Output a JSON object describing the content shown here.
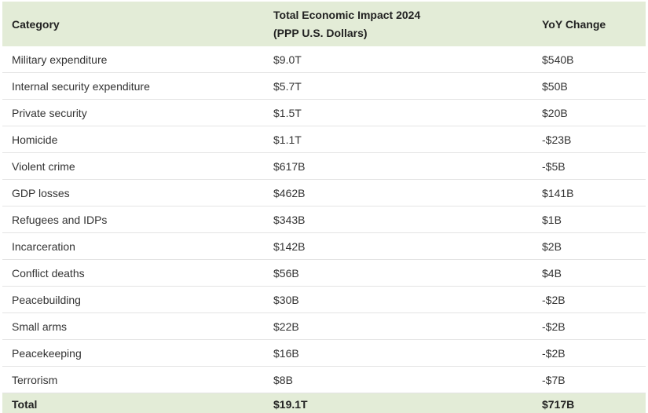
{
  "table": {
    "columns": {
      "category": "Category",
      "impact_line1": "Total Economic Impact 2024",
      "impact_line2": "(PPP U.S. Dollars)",
      "yoy": "YoY Change"
    },
    "rows": [
      {
        "category": "Military expenditure",
        "impact": "$9.0T",
        "yoy": "$540B"
      },
      {
        "category": "Internal security expenditure",
        "impact": "$5.7T",
        "yoy": "$50B"
      },
      {
        "category": "Private security",
        "impact": "$1.5T",
        "yoy": "$20B"
      },
      {
        "category": "Homicide",
        "impact": "$1.1T",
        "yoy": "-$23B"
      },
      {
        "category": "Violent crime",
        "impact": "$617B",
        "yoy": "-$5B"
      },
      {
        "category": "GDP losses",
        "impact": "$462B",
        "yoy": "$141B"
      },
      {
        "category": "Refugees and IDPs",
        "impact": "$343B",
        "yoy": "$1B"
      },
      {
        "category": "Incarceration",
        "impact": "$142B",
        "yoy": "$2B"
      },
      {
        "category": "Conflict deaths",
        "impact": "$56B",
        "yoy": "$4B"
      },
      {
        "category": "Peacebuilding",
        "impact": "$30B",
        "yoy": "-$2B"
      },
      {
        "category": "Small arms",
        "impact": "$22B",
        "yoy": "-$2B"
      },
      {
        "category": "Peacekeeping",
        "impact": "$16B",
        "yoy": "-$2B"
      },
      {
        "category": "Terrorism",
        "impact": "$8B",
        "yoy": "-$7B"
      }
    ],
    "total": {
      "category": "Total",
      "impact": "$19.1T",
      "yoy": "$717B"
    }
  },
  "colors": {
    "header_bg": "#e3ecd7",
    "total_row_bg": "#e3ecd7",
    "row_separator": "#e4e4e4",
    "header_text": "#222222",
    "body_text": "#333333",
    "row_bg": "#ffffff"
  },
  "chart_data": {
    "type": "table",
    "title": "",
    "columns": [
      "Category",
      "Total Economic Impact 2024 (PPP U.S. Dollars)",
      "YoY Change"
    ],
    "rows": [
      [
        "Military expenditure",
        "$9.0T",
        "$540B"
      ],
      [
        "Internal security expenditure",
        "$5.7T",
        "$50B"
      ],
      [
        "Private security",
        "$1.5T",
        "$20B"
      ],
      [
        "Homicide",
        "$1.1T",
        "-$23B"
      ],
      [
        "Violent crime",
        "$617B",
        "-$5B"
      ],
      [
        "GDP losses",
        "$462B",
        "$141B"
      ],
      [
        "Refugees and IDPs",
        "$343B",
        "$1B"
      ],
      [
        "Incarceration",
        "$142B",
        "$2B"
      ],
      [
        "Conflict deaths",
        "$56B",
        "$4B"
      ],
      [
        "Peacebuilding",
        "$30B",
        "-$2B"
      ],
      [
        "Small arms",
        "$22B",
        "-$2B"
      ],
      [
        "Peacekeeping",
        "$16B",
        "-$2B"
      ],
      [
        "Terrorism",
        "$8B",
        "-$7B"
      ]
    ],
    "total_row": [
      "Total",
      "$19.1T",
      "$717B"
    ]
  }
}
